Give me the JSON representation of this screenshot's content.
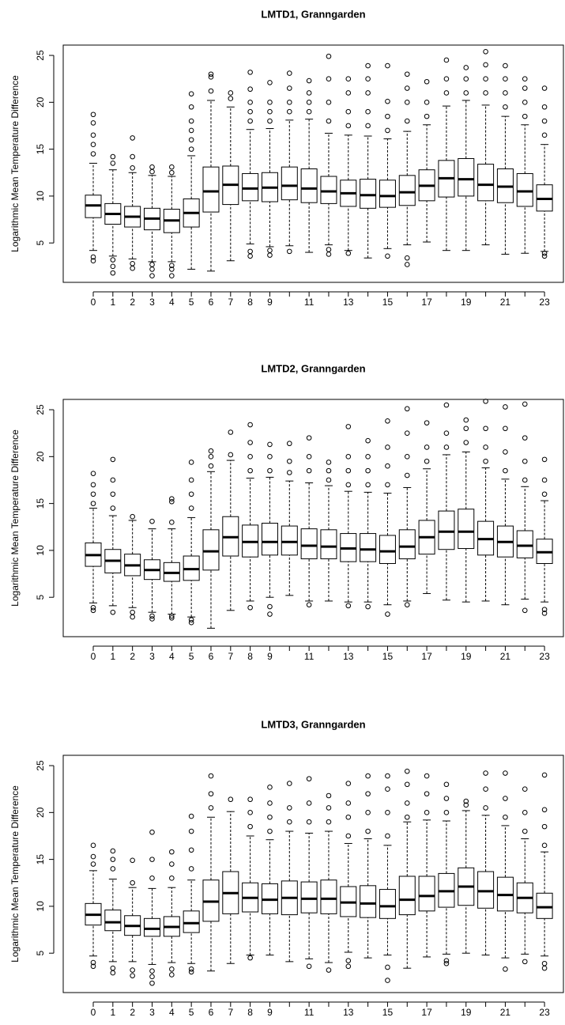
{
  "chart_data": [
    {
      "type": "box",
      "title": "LMTD1, Granngarden",
      "ylabel": "Logarithmic Mean Temperature Difference",
      "categories": [
        "0",
        "1",
        "2",
        "3",
        "4",
        "5",
        "6",
        "7",
        "8",
        "9",
        null,
        "11",
        null,
        "13",
        null,
        "15",
        null,
        "17",
        null,
        "19",
        null,
        "21",
        null,
        "23"
      ],
      "ylim": [
        0.8,
        26.1
      ],
      "yticks": [
        5,
        10,
        15,
        20,
        25
      ],
      "color": "#000000",
      "boxes": [
        {
          "low": 4.2,
          "q1": 7.7,
          "median": 9.0,
          "q3": 10.1,
          "high": 13.5,
          "outliers": [
            3.1,
            3.5,
            14.5,
            15.5,
            16.5,
            17.8,
            18.7
          ]
        },
        {
          "low": 3.6,
          "q1": 7.0,
          "median": 8.1,
          "q3": 9.2,
          "high": 12.8,
          "outliers": [
            1.8,
            2.5,
            3.2,
            13.5,
            14.2
          ]
        },
        {
          "low": 3.3,
          "q1": 6.7,
          "median": 7.8,
          "q3": 8.9,
          "high": 12.5,
          "outliers": [
            2.3,
            2.8,
            13.0,
            14.2,
            16.2
          ]
        },
        {
          "low": 3.0,
          "q1": 6.4,
          "median": 7.6,
          "q3": 8.7,
          "high": 12.2,
          "outliers": [
            1.5,
            2.2,
            2.7,
            12.6,
            13.1
          ]
        },
        {
          "low": 3.0,
          "q1": 6.1,
          "median": 7.4,
          "q3": 8.6,
          "high": 12.1,
          "outliers": [
            1.5,
            2.2,
            2.6,
            12.5,
            13.1
          ]
        },
        {
          "low": 2.2,
          "q1": 6.7,
          "median": 8.2,
          "q3": 9.7,
          "high": 14.3,
          "outliers": [
            15,
            16,
            17,
            18,
            19.5,
            20.9
          ]
        },
        {
          "low": 2.0,
          "q1": 8.3,
          "median": 10.5,
          "q3": 13.1,
          "high": 20.2,
          "outliers": [
            21.2,
            22.7,
            23.0
          ]
        },
        {
          "low": 3.1,
          "q1": 9.1,
          "median": 11.2,
          "q3": 13.2,
          "high": 19.5,
          "outliers": [
            20.4,
            21.0
          ]
        },
        {
          "low": 4.9,
          "q1": 9.5,
          "median": 10.8,
          "q3": 12.4,
          "high": 17.1,
          "outliers": [
            3.6,
            4.1,
            18,
            19,
            20,
            21.4,
            23.2
          ]
        },
        {
          "low": 4.6,
          "q1": 9.4,
          "median": 10.9,
          "q3": 12.5,
          "high": 17.2,
          "outliers": [
            3.7,
            4.2,
            18,
            19,
            20,
            22.1
          ]
        },
        {
          "low": 4.7,
          "q1": 9.6,
          "median": 11.1,
          "q3": 13.1,
          "high": 18.1,
          "outliers": [
            4.1,
            19,
            20,
            21.5,
            23.1
          ]
        },
        {
          "low": 4.0,
          "q1": 9.3,
          "median": 10.8,
          "q3": 12.9,
          "high": 18.2,
          "outliers": [
            19,
            20,
            21,
            22.3
          ]
        },
        {
          "low": 4.8,
          "q1": 9.2,
          "median": 10.5,
          "q3": 12.1,
          "high": 16.7,
          "outliers": [
            3.8,
            4.3,
            18,
            20,
            22.5,
            24.9
          ]
        },
        {
          "low": 4.2,
          "q1": 8.9,
          "median": 10.3,
          "q3": 11.7,
          "high": 16.5,
          "outliers": [
            3.9,
            17.5,
            19,
            21,
            22.5
          ]
        },
        {
          "low": 3.4,
          "q1": 8.7,
          "median": 10.1,
          "q3": 11.8,
          "high": 16.4,
          "outliers": [
            17.5,
            19,
            21,
            22.5,
            23.9
          ]
        },
        {
          "low": 4.4,
          "q1": 8.8,
          "median": 10.0,
          "q3": 11.7,
          "high": 16.1,
          "outliers": [
            3.6,
            17,
            18.5,
            20.1,
            23.9
          ]
        },
        {
          "low": 4.8,
          "q1": 9.0,
          "median": 10.4,
          "q3": 12.2,
          "high": 16.9,
          "outliers": [
            2.7,
            3.4,
            18,
            20,
            21.5,
            23.0
          ]
        },
        {
          "low": 5.1,
          "q1": 9.5,
          "median": 11.1,
          "q3": 12.8,
          "high": 17.6,
          "outliers": [
            18.5,
            20,
            22.2
          ]
        },
        {
          "low": 4.2,
          "q1": 9.9,
          "median": 11.9,
          "q3": 13.8,
          "high": 19.6,
          "outliers": [
            21,
            22.5,
            24.5
          ]
        },
        {
          "low": 4.2,
          "q1": 10.0,
          "median": 11.8,
          "q3": 14.0,
          "high": 20.2,
          "outliers": [
            21,
            22.5,
            23.7
          ]
        },
        {
          "low": 4.8,
          "q1": 9.5,
          "median": 11.2,
          "q3": 13.4,
          "high": 19.7,
          "outliers": [
            21,
            22.5,
            24,
            25.4
          ]
        },
        {
          "low": 3.8,
          "q1": 9.3,
          "median": 11.0,
          "q3": 12.9,
          "high": 18.5,
          "outliers": [
            19.5,
            21,
            22.5,
            23.9
          ]
        },
        {
          "low": 3.9,
          "q1": 8.9,
          "median": 10.5,
          "q3": 12.4,
          "high": 17.6,
          "outliers": [
            18.5,
            20,
            21.5,
            22.5
          ]
        },
        {
          "low": 4.1,
          "q1": 8.4,
          "median": 9.7,
          "q3": 11.2,
          "high": 15.5,
          "outliers": [
            3.6,
            3.9,
            16.5,
            18,
            19.5,
            21.5
          ]
        }
      ]
    },
    {
      "type": "box",
      "title": "LMTD2, Granngarden",
      "ylabel": "Logarithmic Mean Temperature Difference",
      "categories": [
        "0",
        "1",
        "2",
        "3",
        "4",
        "5",
        "6",
        "7",
        "8",
        "9",
        null,
        "11",
        null,
        "13",
        null,
        "15",
        null,
        "17",
        null,
        "19",
        null,
        "21",
        null,
        "23"
      ],
      "ylim": [
        0.8,
        26.1
      ],
      "yticks": [
        5,
        10,
        15,
        20,
        25
      ],
      "color": "#000000",
      "boxes": [
        {
          "low": 4.4,
          "q1": 8.3,
          "median": 9.5,
          "q3": 10.8,
          "high": 14.5,
          "outliers": [
            3.6,
            3.9,
            15,
            16,
            17,
            18.2
          ]
        },
        {
          "low": 4.1,
          "q1": 7.6,
          "median": 8.9,
          "q3": 10.1,
          "high": 13.7,
          "outliers": [
            3.4,
            14.5,
            16,
            17.5,
            19.7
          ]
        },
        {
          "low": 3.9,
          "q1": 7.3,
          "median": 8.4,
          "q3": 9.6,
          "high": 13.2,
          "outliers": [
            2.9,
            3.4,
            13.6
          ]
        },
        {
          "low": 3.4,
          "q1": 6.9,
          "median": 7.9,
          "q3": 9.0,
          "high": 12.3,
          "outliers": [
            2.7,
            3.0,
            13.1
          ]
        },
        {
          "low": 3.2,
          "q1": 6.7,
          "median": 7.6,
          "q3": 8.7,
          "high": 12.3,
          "outliers": [
            2.8,
            3.0,
            13,
            15.2,
            15.5
          ]
        },
        {
          "low": 2.9,
          "q1": 6.8,
          "median": 8.0,
          "q3": 9.4,
          "high": 13.5,
          "outliers": [
            2.3,
            2.6,
            14.5,
            16,
            17.5,
            19.4
          ]
        },
        {
          "low": 1.7,
          "q1": 7.9,
          "median": 9.9,
          "q3": 12.2,
          "high": 18.4,
          "outliers": [
            19,
            20,
            20.6
          ]
        },
        {
          "low": 3.6,
          "q1": 9.4,
          "median": 11.4,
          "q3": 13.6,
          "high": 19.6,
          "outliers": [
            20.2,
            22.6
          ]
        },
        {
          "low": 4.6,
          "q1": 9.3,
          "median": 10.9,
          "q3": 12.7,
          "high": 17.7,
          "outliers": [
            3.9,
            18.5,
            20,
            21.5,
            23.4
          ]
        },
        {
          "low": 5.0,
          "q1": 9.5,
          "median": 10.9,
          "q3": 12.9,
          "high": 17.8,
          "outliers": [
            3.2,
            4.0,
            18.5,
            20,
            21.3
          ]
        },
        {
          "low": 5.2,
          "q1": 9.5,
          "median": 10.9,
          "q3": 12.6,
          "high": 17.4,
          "outliers": [
            18.3,
            19.5,
            21.4
          ]
        },
        {
          "low": 4.6,
          "q1": 9.1,
          "median": 10.5,
          "q3": 12.3,
          "high": 17.2,
          "outliers": [
            4.2,
            18.5,
            20,
            22.0
          ]
        },
        {
          "low": 4.6,
          "q1": 9.1,
          "median": 10.4,
          "q3": 12.2,
          "high": 16.9,
          "outliers": [
            17.5,
            18.5,
            19.4
          ]
        },
        {
          "low": 4.5,
          "q1": 8.8,
          "median": 10.2,
          "q3": 11.8,
          "high": 16.3,
          "outliers": [
            4.1,
            17,
            18.5,
            20,
            23.2
          ]
        },
        {
          "low": 4.5,
          "q1": 8.8,
          "median": 10.1,
          "q3": 11.8,
          "high": 16.2,
          "outliers": [
            4.0,
            17,
            18.5,
            20,
            21.7
          ]
        },
        {
          "low": 4.2,
          "q1": 8.6,
          "median": 9.9,
          "q3": 11.6,
          "high": 16.1,
          "outliers": [
            3.2,
            17,
            19,
            21,
            23.8
          ]
        },
        {
          "low": 4.6,
          "q1": 9.1,
          "median": 10.4,
          "q3": 12.2,
          "high": 16.7,
          "outliers": [
            4.2,
            18,
            20,
            22.5,
            25.1
          ]
        },
        {
          "low": 5.4,
          "q1": 9.6,
          "median": 11.4,
          "q3": 13.2,
          "high": 18.7,
          "outliers": [
            19.5,
            21,
            23.6
          ]
        },
        {
          "low": 4.7,
          "q1": 10.1,
          "median": 12.0,
          "q3": 14.2,
          "high": 20.2,
          "outliers": [
            21,
            22.5,
            25.5
          ]
        },
        {
          "low": 4.5,
          "q1": 10.2,
          "median": 12.0,
          "q3": 14.4,
          "high": 20.5,
          "outliers": [
            21.5,
            23,
            23.9
          ]
        },
        {
          "low": 4.6,
          "q1": 9.5,
          "median": 11.2,
          "q3": 13.1,
          "high": 18.8,
          "outliers": [
            19.5,
            21,
            23,
            25.9
          ]
        },
        {
          "low": 4.2,
          "q1": 9.3,
          "median": 10.9,
          "q3": 12.6,
          "high": 17.6,
          "outliers": [
            18.5,
            20.5,
            23,
            25.3
          ]
        },
        {
          "low": 4.8,
          "q1": 9.2,
          "median": 10.5,
          "q3": 12.1,
          "high": 16.8,
          "outliers": [
            3.6,
            17.5,
            19.5,
            22,
            25.6
          ]
        },
        {
          "low": 4.5,
          "q1": 8.6,
          "median": 9.8,
          "q3": 11.2,
          "high": 15.3,
          "outliers": [
            3.3,
            3.7,
            16,
            17.5,
            19.7
          ]
        }
      ]
    },
    {
      "type": "box",
      "title": "LMTD3, Granngarden",
      "ylabel": "Logarithmic Mean Temperature Difference",
      "categories": [
        "0",
        "1",
        "2",
        "3",
        "4",
        "5",
        "6",
        "7",
        "8",
        "9",
        null,
        "11",
        null,
        "13",
        null,
        "15",
        null,
        "17",
        null,
        "19",
        null,
        "21",
        null,
        "23"
      ],
      "ylim": [
        0.8,
        26.1
      ],
      "yticks": [
        5,
        10,
        15,
        20,
        25
      ],
      "color": "#000000",
      "boxes": [
        {
          "low": 4.7,
          "q1": 8.0,
          "median": 9.1,
          "q3": 10.3,
          "high": 13.8,
          "outliers": [
            3.6,
            4.0,
            14.5,
            15.3,
            16.5
          ]
        },
        {
          "low": 4.1,
          "q1": 7.4,
          "median": 8.3,
          "q3": 9.6,
          "high": 12.9,
          "outliers": [
            2.9,
            3.4,
            14,
            15,
            15.9
          ]
        },
        {
          "low": 4.1,
          "q1": 6.9,
          "median": 7.9,
          "q3": 9.0,
          "high": 12.0,
          "outliers": [
            2.6,
            3.2,
            12.5,
            14.9
          ]
        },
        {
          "low": 3.8,
          "q1": 6.8,
          "median": 7.6,
          "q3": 8.7,
          "high": 11.9,
          "outliers": [
            1.8,
            2.5,
            3.1,
            13,
            15,
            17.9
          ]
        },
        {
          "low": 4.0,
          "q1": 6.8,
          "median": 7.8,
          "q3": 8.9,
          "high": 12.0,
          "outliers": [
            2.7,
            3.3,
            13,
            14.5,
            15.8
          ]
        },
        {
          "low": 3.9,
          "q1": 7.2,
          "median": 8.2,
          "q3": 9.5,
          "high": 12.8,
          "outliers": [
            3.0,
            3.3,
            14,
            16,
            18,
            19.6
          ]
        },
        {
          "low": 3.1,
          "q1": 8.4,
          "median": 10.5,
          "q3": 12.8,
          "high": 19.5,
          "outliers": [
            20.5,
            22,
            23.9
          ]
        },
        {
          "low": 3.9,
          "q1": 9.2,
          "median": 11.4,
          "q3": 13.7,
          "high": 20.1,
          "outliers": [
            21.4
          ]
        },
        {
          "low": 4.8,
          "q1": 9.4,
          "median": 10.9,
          "q3": 12.5,
          "high": 17.5,
          "outliers": [
            4.5,
            18.5,
            20,
            21.4
          ]
        },
        {
          "low": 4.8,
          "q1": 9.2,
          "median": 10.7,
          "q3": 12.4,
          "high": 17.1,
          "outliers": [
            18,
            19.5,
            21,
            22.7
          ]
        },
        {
          "low": 4.1,
          "q1": 9.1,
          "median": 10.9,
          "q3": 12.7,
          "high": 18.0,
          "outliers": [
            19,
            20.5,
            23.1
          ]
        },
        {
          "low": 4.4,
          "q1": 9.3,
          "median": 10.8,
          "q3": 12.6,
          "high": 17.8,
          "outliers": [
            3.6,
            19,
            21,
            23.6
          ]
        },
        {
          "low": 4.0,
          "q1": 9.2,
          "median": 10.8,
          "q3": 12.8,
          "high": 18.0,
          "outliers": [
            3.2,
            19,
            20.5,
            21.8
          ]
        },
        {
          "low": 5.1,
          "q1": 8.9,
          "median": 10.4,
          "q3": 12.1,
          "high": 16.7,
          "outliers": [
            3.6,
            4.2,
            17.5,
            19.5,
            21,
            23.1
          ]
        },
        {
          "low": 4.5,
          "q1": 8.8,
          "median": 10.3,
          "q3": 12.2,
          "high": 17.2,
          "outliers": [
            18,
            20,
            22,
            23.9
          ]
        },
        {
          "low": 4.8,
          "q1": 8.7,
          "median": 10.0,
          "q3": 11.8,
          "high": 16.5,
          "outliers": [
            2.1,
            3.5,
            17.5,
            20,
            22.5,
            23.9
          ]
        },
        {
          "low": 3.4,
          "q1": 9.1,
          "median": 10.7,
          "q3": 13.2,
          "high": 19.0,
          "outliers": [
            19.5,
            21,
            23,
            24.4
          ]
        },
        {
          "low": 4.6,
          "q1": 9.5,
          "median": 11.1,
          "q3": 13.2,
          "high": 19.2,
          "outliers": [
            20,
            22,
            23.9
          ]
        },
        {
          "low": 4.9,
          "q1": 9.9,
          "median": 11.6,
          "q3": 13.5,
          "high": 19.1,
          "outliers": [
            3.9,
            4.2,
            20,
            21.5,
            23.0
          ]
        },
        {
          "low": 5.0,
          "q1": 10.1,
          "median": 12.1,
          "q3": 14.1,
          "high": 20.2,
          "outliers": [
            20.8,
            21.2
          ]
        },
        {
          "low": 4.8,
          "q1": 9.8,
          "median": 11.6,
          "q3": 13.7,
          "high": 19.7,
          "outliers": [
            20.5,
            22.5,
            24.2
          ]
        },
        {
          "low": 4.5,
          "q1": 9.5,
          "median": 11.2,
          "q3": 13.1,
          "high": 18.6,
          "outliers": [
            3.3,
            19.5,
            21.5,
            24.2
          ]
        },
        {
          "low": 4.9,
          "q1": 9.3,
          "median": 10.9,
          "q3": 12.5,
          "high": 17.2,
          "outliers": [
            4.1,
            18,
            20,
            22.5
          ]
        },
        {
          "low": 4.7,
          "q1": 8.7,
          "median": 9.9,
          "q3": 11.4,
          "high": 15.8,
          "outliers": [
            3.4,
            3.9,
            16.5,
            18.5,
            20.3,
            24.0
          ]
        }
      ]
    }
  ]
}
